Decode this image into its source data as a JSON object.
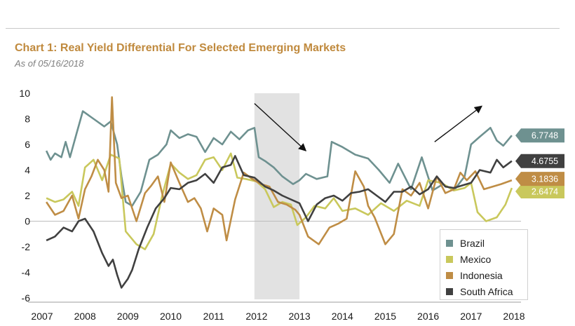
{
  "title": "Chart 1: Real Yield Differential For Selected Emerging Markets",
  "subtitle": "As of 05/16/2018",
  "chart_data": {
    "type": "line",
    "title": "Chart 1: Real Yield Differential For Selected Emerging Markets",
    "subtitle": "As of 05/16/2018",
    "xlabel": "",
    "ylabel": "",
    "xlim": [
      2007,
      2018.3
    ],
    "ylim": [
      -6.5,
      10
    ],
    "x_ticks": [
      "2007",
      "2008",
      "2009",
      "2010",
      "2011",
      "2012",
      "2013",
      "2014",
      "2015",
      "2016",
      "2017",
      "2018"
    ],
    "y_ticks": [
      "10",
      "8",
      "6",
      "4",
      "2",
      "0",
      "-2",
      "-4",
      "-6"
    ],
    "grid": false,
    "legend_position": "bottom-right",
    "shaded_region": [
      2011.95,
      2013.0
    ],
    "trend_arrows": [
      {
        "from": [
          2011.95,
          9.2
        ],
        "to": [
          2013.15,
          5.5
        ]
      },
      {
        "from": [
          2016.15,
          6.2
        ],
        "to": [
          2017.25,
          9.0
        ]
      }
    ],
    "series": [
      {
        "name": "Brazil",
        "color": "#6e9190",
        "end_label": "6.7748",
        "x": [
          2007.1,
          2007.2,
          2007.3,
          2007.45,
          2007.55,
          2007.65,
          2007.8,
          2007.95,
          2008.2,
          2008.45,
          2008.6,
          2008.75,
          2008.85,
          2008.95,
          2009.1,
          2009.3,
          2009.5,
          2009.7,
          2009.9,
          2010.0,
          2010.2,
          2010.4,
          2010.6,
          2010.8,
          2011.0,
          2011.2,
          2011.4,
          2011.6,
          2011.8,
          2011.95,
          2012.05,
          2012.2,
          2012.4,
          2012.6,
          2012.85,
          2013.0,
          2013.15,
          2013.4,
          2013.65,
          2013.75,
          2014.0,
          2014.3,
          2014.6,
          2014.85,
          2015.1,
          2015.3,
          2015.6,
          2015.85,
          2016.1,
          2016.35,
          2016.6,
          2016.85,
          2017.0,
          2017.2,
          2017.45,
          2017.6,
          2017.75,
          2017.95
        ],
        "y": [
          5.5,
          4.8,
          5.3,
          5.0,
          6.2,
          5.0,
          6.8,
          8.6,
          8.0,
          7.4,
          7.8,
          6.0,
          3.5,
          1.5,
          1.2,
          2.3,
          4.8,
          5.2,
          6.0,
          7.1,
          6.5,
          6.8,
          6.6,
          5.4,
          6.5,
          6.0,
          7.0,
          6.4,
          7.1,
          7.3,
          5.0,
          4.7,
          4.2,
          3.5,
          2.9,
          3.2,
          3.7,
          3.3,
          3.5,
          6.2,
          5.8,
          5.2,
          4.9,
          4.0,
          3.0,
          4.5,
          2.5,
          5.0,
          2.4,
          2.9,
          2.4,
          3.5,
          6.0,
          6.6,
          7.3,
          6.3,
          5.9,
          6.7
        ]
      },
      {
        "name": "Mexico",
        "color": "#c9c85c",
        "end_label": "2.6474",
        "x": [
          2007.1,
          2007.3,
          2007.5,
          2007.7,
          2007.85,
          2008.0,
          2008.2,
          2008.4,
          2008.6,
          2008.8,
          2008.95,
          2009.2,
          2009.4,
          2009.6,
          2009.8,
          2010.0,
          2010.2,
          2010.4,
          2010.6,
          2010.8,
          2011.0,
          2011.2,
          2011.4,
          2011.55,
          2011.75,
          2012.0,
          2012.2,
          2012.4,
          2012.6,
          2012.8,
          2012.95,
          2013.15,
          2013.35,
          2013.6,
          2013.8,
          2014.0,
          2014.3,
          2014.6,
          2014.9,
          2015.2,
          2015.5,
          2015.8,
          2016.0,
          2016.3,
          2016.6,
          2016.85,
          2017.0,
          2017.15,
          2017.35,
          2017.6,
          2017.8,
          2017.95
        ],
        "y": [
          1.8,
          1.5,
          1.7,
          2.3,
          1.2,
          4.2,
          4.8,
          3.2,
          5.2,
          4.9,
          -0.8,
          -1.8,
          -2.2,
          -1.0,
          2.0,
          4.5,
          3.8,
          3.3,
          3.6,
          4.8,
          5.0,
          4.0,
          5.3,
          3.4,
          3.3,
          3.1,
          2.5,
          1.1,
          1.5,
          1.3,
          -0.3,
          0.3,
          1.2,
          1.0,
          1.8,
          0.8,
          1.0,
          0.5,
          1.4,
          0.8,
          1.6,
          1.2,
          3.2,
          3.0,
          2.4,
          2.6,
          3.0,
          0.7,
          0.0,
          0.3,
          1.3,
          2.6
        ]
      },
      {
        "name": "Indonesia",
        "color": "#bf8d45",
        "end_label": "3.1836",
        "x": [
          2007.1,
          2007.3,
          2007.5,
          2007.7,
          2007.85,
          2008.0,
          2008.15,
          2008.3,
          2008.45,
          2008.55,
          2008.63,
          2008.72,
          2008.85,
          2009.0,
          2009.2,
          2009.4,
          2009.55,
          2009.7,
          2009.85,
          2010.0,
          2010.2,
          2010.4,
          2010.55,
          2010.7,
          2010.85,
          2011.0,
          2011.2,
          2011.3,
          2011.5,
          2011.7,
          2011.9,
          2012.1,
          2012.3,
          2012.5,
          2012.7,
          2012.9,
          2013.0,
          2013.2,
          2013.45,
          2013.7,
          2013.9,
          2014.1,
          2014.3,
          2014.5,
          2014.6,
          2014.75,
          2015.0,
          2015.2,
          2015.4,
          2015.6,
          2015.8,
          2016.0,
          2016.2,
          2016.4,
          2016.6,
          2016.75,
          2016.9,
          2017.1,
          2017.3,
          2017.5,
          2017.7,
          2017.95
        ],
        "y": [
          1.5,
          0.5,
          0.8,
          2.0,
          0.2,
          2.5,
          3.5,
          4.8,
          4.0,
          2.3,
          9.7,
          3.0,
          1.8,
          2.0,
          0.0,
          2.2,
          2.8,
          3.5,
          1.5,
          4.6,
          3.0,
          1.5,
          1.8,
          1.0,
          -0.8,
          1.0,
          0.5,
          -1.5,
          1.7,
          3.8,
          3.3,
          2.9,
          2.7,
          1.5,
          1.3,
          0.9,
          0.5,
          -1.2,
          -1.8,
          -0.5,
          -0.2,
          0.2,
          3.9,
          2.7,
          1.2,
          0.3,
          -1.8,
          -1.0,
          2.5,
          2.0,
          3.0,
          1.0,
          3.5,
          2.2,
          2.5,
          3.8,
          3.2,
          3.9,
          2.5,
          2.7,
          2.9,
          3.2
        ]
      },
      {
        "name": "South Africa",
        "color": "#404040",
        "end_label": "4.6755",
        "x": [
          2007.1,
          2007.3,
          2007.5,
          2007.7,
          2007.85,
          2008.0,
          2008.2,
          2008.4,
          2008.55,
          2008.65,
          2008.75,
          2008.85,
          2009.0,
          2009.1,
          2009.25,
          2009.45,
          2009.65,
          2009.85,
          2010.0,
          2010.2,
          2010.4,
          2010.6,
          2010.8,
          2011.0,
          2011.2,
          2011.4,
          2011.5,
          2011.7,
          2011.95,
          2012.2,
          2012.4,
          2012.6,
          2012.8,
          2013.0,
          2013.2,
          2013.4,
          2013.6,
          2013.8,
          2014.0,
          2014.2,
          2014.4,
          2014.6,
          2014.8,
          2015.0,
          2015.2,
          2015.4,
          2015.6,
          2015.8,
          2016.0,
          2016.2,
          2016.4,
          2016.6,
          2016.8,
          2017.0,
          2017.2,
          2017.45,
          2017.6,
          2017.75,
          2017.95
        ],
        "y": [
          -1.5,
          -1.2,
          -0.5,
          -0.8,
          0.0,
          0.2,
          -0.8,
          -2.5,
          -3.5,
          -3.0,
          -4.2,
          -5.2,
          -4.5,
          -3.8,
          -2.2,
          -0.5,
          1.0,
          1.8,
          2.6,
          2.5,
          3.0,
          3.2,
          3.7,
          3.0,
          4.2,
          4.4,
          5.1,
          3.6,
          3.4,
          2.7,
          2.4,
          2.0,
          1.7,
          1.4,
          0.0,
          1.3,
          1.8,
          2.0,
          1.6,
          2.2,
          2.3,
          2.5,
          2.0,
          1.5,
          2.3,
          2.3,
          2.7,
          2.1,
          2.5,
          3.5,
          2.7,
          2.6,
          2.8,
          3.0,
          4.0,
          3.8,
          4.8,
          4.2,
          4.7
        ]
      }
    ]
  }
}
